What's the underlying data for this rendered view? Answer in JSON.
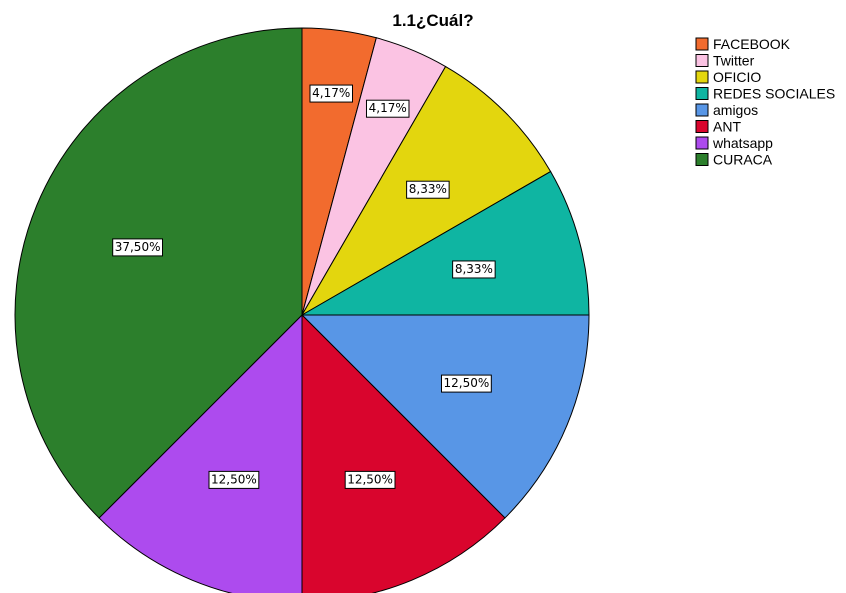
{
  "chart_data": {
    "type": "pie",
    "title": "1.1¿Cuál?",
    "categories": [
      "FACEBOOK",
      "Twitter",
      "OFICIO",
      "REDES SOCIALES",
      "amigos",
      "ANT",
      "whatsapp",
      "CURACA"
    ],
    "values": [
      4.17,
      4.17,
      8.33,
      8.33,
      12.5,
      12.5,
      12.5,
      37.5
    ],
    "labels": [
      "4,17%",
      "4,17%",
      "8,33%",
      "8,33%",
      "12,50%",
      "12,50%",
      "12,50%",
      "37,50%"
    ],
    "colors": [
      "#f26b2e",
      "#fbc3e3",
      "#e3d60e",
      "#0fb5a2",
      "#5896e6",
      "#d9052d",
      "#ad4bee",
      "#2c7f2c"
    ],
    "legend_position": "top-right",
    "start_angle": "12 o'clock",
    "direction": "clockwise"
  }
}
